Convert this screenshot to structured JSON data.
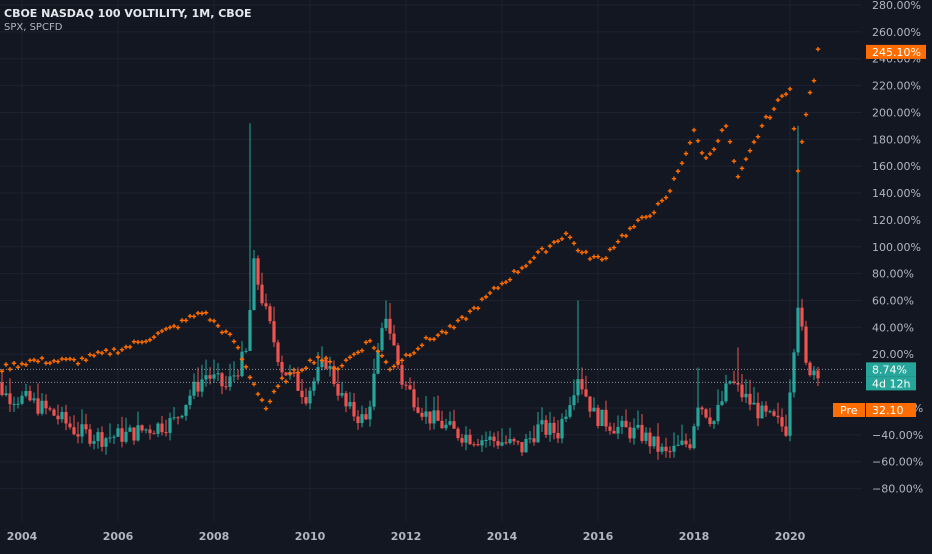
{
  "header": {
    "title": "CBOE NASDAQ 100 VOLTILITY, 1M, CBOE",
    "compare_label": "SPX, SPCFD"
  },
  "colors": {
    "background": "#131722",
    "grid": "#1e2230",
    "up": "#26a69a",
    "down": "#ef5350",
    "compare": "#ff6d00",
    "axis_text": "#b2b5be"
  },
  "badges": {
    "compare_value": "245.10%",
    "last_value": "8.74%",
    "countdown": "4d 12h",
    "pre_label": "Pre",
    "pre_value": "32.10"
  },
  "chart_data": {
    "type": "candlestick+scatter",
    "x_axis": {
      "type": "date",
      "ticks": [
        "2004",
        "2006",
        "2008",
        "2010",
        "2012",
        "2014",
        "2016",
        "2018",
        "2020"
      ]
    },
    "y_axis": {
      "unit": "%",
      "range": [
        -90,
        280
      ],
      "ticks": [
        "280.00%",
        "260.00%",
        "240.00%",
        "220.00%",
        "200.00%",
        "180.00%",
        "160.00%",
        "140.00%",
        "120.00%",
        "100.00%",
        "80.00%",
        "60.00%",
        "40.00%",
        "20.00%",
        "−20.00%",
        "−40.00%",
        "−60.00%",
        "−80.00%"
      ]
    },
    "main_series": {
      "name": "CBOE NASDAQ 100 VOLTILITY",
      "style": "candles",
      "keypoints": [
        [
          "2003-03",
          10
        ],
        [
          "2003-09",
          -10
        ],
        [
          "2004-03",
          -15
        ],
        [
          "2004-09",
          -25
        ],
        [
          "2005-03",
          -38
        ],
        [
          "2005-09",
          -42
        ],
        [
          "2006-03",
          -40
        ],
        [
          "2006-09",
          -35
        ],
        [
          "2007-03",
          -30
        ],
        [
          "2007-07",
          -10
        ],
        [
          "2007-11",
          5
        ],
        [
          "2008-04",
          -5
        ],
        [
          "2008-09",
          20
        ],
        [
          "2008-11",
          85
        ],
        [
          "2009-02",
          50
        ],
        [
          "2009-06",
          10
        ],
        [
          "2009-12",
          -10
        ],
        [
          "2010-05",
          15
        ],
        [
          "2010-10",
          -20
        ],
        [
          "2011-03",
          -30
        ],
        [
          "2011-08",
          50
        ],
        [
          "2011-12",
          0
        ],
        [
          "2012-06",
          -25
        ],
        [
          "2013-01",
          -38
        ],
        [
          "2013-06",
          -42
        ],
        [
          "2014-01",
          -45
        ],
        [
          "2014-06",
          -50
        ],
        [
          "2014-10",
          -35
        ],
        [
          "2015-03",
          -38
        ],
        [
          "2015-08",
          5
        ],
        [
          "2015-12",
          -25
        ],
        [
          "2016-06",
          -35
        ],
        [
          "2016-12",
          -40
        ],
        [
          "2017-06",
          -55
        ],
        [
          "2017-12",
          -45
        ],
        [
          "2018-02",
          -15
        ],
        [
          "2018-06",
          -30
        ],
        [
          "2018-10",
          0
        ],
        [
          "2019-01",
          -10
        ],
        [
          "2019-06",
          -25
        ],
        [
          "2019-12",
          -35
        ],
        [
          "2020-03",
          60
        ],
        [
          "2020-05",
          10
        ],
        [
          "2020-08",
          9
        ]
      ],
      "spikes": [
        [
          "2008-10",
          192
        ],
        [
          "2011-08",
          60
        ],
        [
          "2015-08",
          60
        ],
        [
          "2018-02",
          10
        ],
        [
          "2018-12",
          25
        ],
        [
          "2020-03",
          190
        ]
      ],
      "last": 8.74
    },
    "compare_series": {
      "name": "SPX, SPCFD",
      "style": "cross",
      "keypoints": [
        [
          "2003-03",
          5
        ],
        [
          "2004-03",
          15
        ],
        [
          "2005-03",
          15
        ],
        [
          "2006-03",
          25
        ],
        [
          "2007-03",
          40
        ],
        [
          "2007-10",
          52
        ],
        [
          "2008-06",
          30
        ],
        [
          "2008-09",
          10
        ],
        [
          "2009-02",
          -20
        ],
        [
          "2009-06",
          0
        ],
        [
          "2010-03",
          18
        ],
        [
          "2010-08",
          10
        ],
        [
          "2011-04",
          30
        ],
        [
          "2011-09",
          10
        ],
        [
          "2012-06",
          30
        ],
        [
          "2013-01",
          40
        ],
        [
          "2013-12",
          70
        ],
        [
          "2014-06",
          85
        ],
        [
          "2015-05",
          110
        ],
        [
          "2015-09",
          95
        ],
        [
          "2016-02",
          90
        ],
        [
          "2016-06",
          105
        ],
        [
          "2017-06",
          135
        ],
        [
          "2018-01",
          185
        ],
        [
          "2018-04",
          165
        ],
        [
          "2018-09",
          190
        ],
        [
          "2018-12",
          150
        ],
        [
          "2019-06",
          190
        ],
        [
          "2020-01",
          220
        ],
        [
          "2020-03",
          155
        ],
        [
          "2020-05",
          200
        ],
        [
          "2020-07",
          225
        ],
        [
          "2020-08",
          245.1
        ]
      ],
      "last": 245.1
    }
  }
}
